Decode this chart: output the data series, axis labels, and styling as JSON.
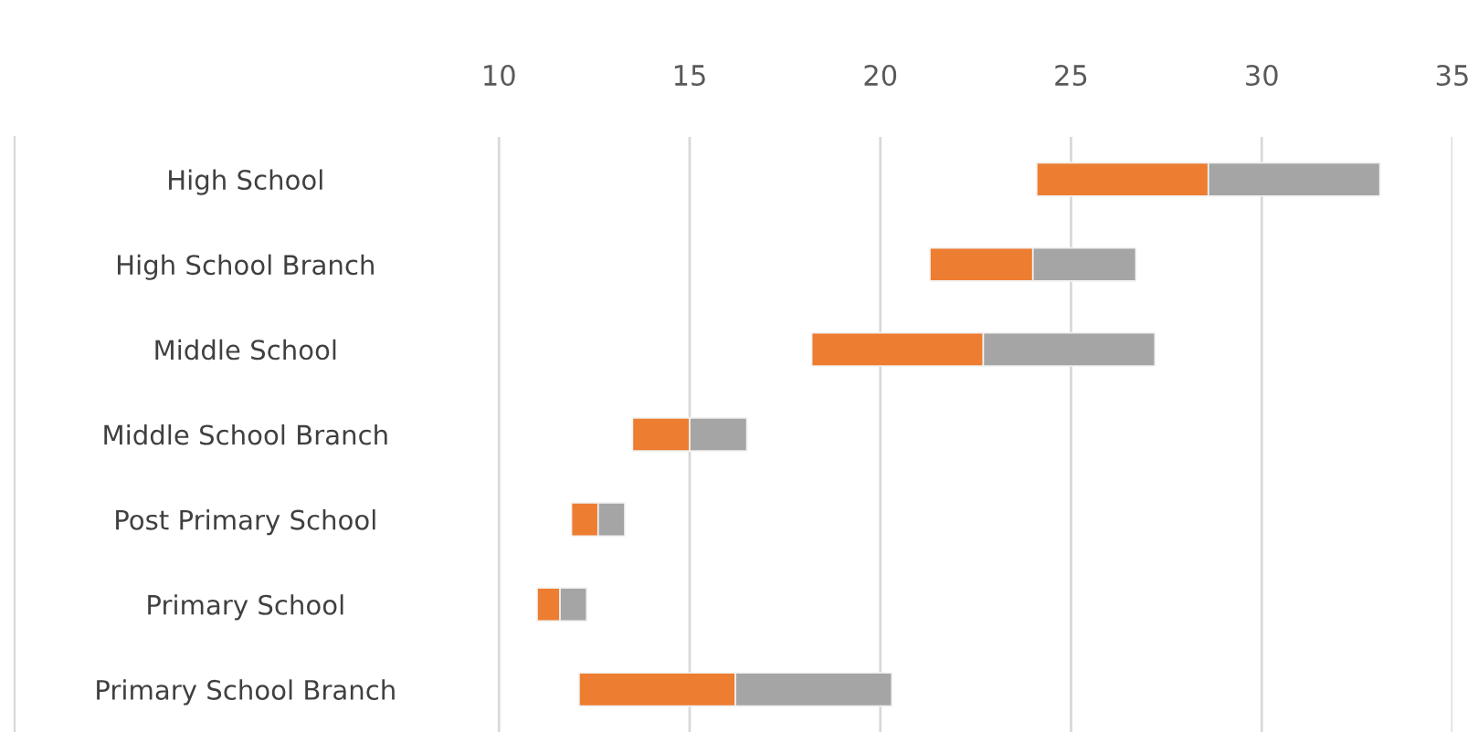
{
  "chart_data": {
    "type": "bar",
    "orientation": "horizontal",
    "categories": [
      "High School",
      "High School Branch",
      "Middle School",
      "Middle School Branch",
      "Post Primary School",
      "Primary School",
      "Primary School Branch"
    ],
    "series": [
      {
        "color": "#ed7d31",
        "base": [
          24.1,
          21.3,
          18.2,
          13.5,
          11.9,
          11.0,
          12.1
        ],
        "values": [
          4.5,
          2.7,
          4.5,
          1.5,
          0.7,
          0.6,
          4.1
        ]
      },
      {
        "color": "#a5a5a5",
        "base": [
          28.6,
          24.0,
          22.7,
          15.0,
          12.6,
          11.6,
          16.2
        ],
        "values": [
          4.5,
          2.7,
          4.5,
          1.5,
          0.7,
          0.7,
          4.1
        ]
      }
    ],
    "xlim": [
      -2.7,
      35
    ],
    "xticks": [
      10,
      15,
      20,
      25,
      30,
      35
    ],
    "grid": "x",
    "legend": false
  }
}
